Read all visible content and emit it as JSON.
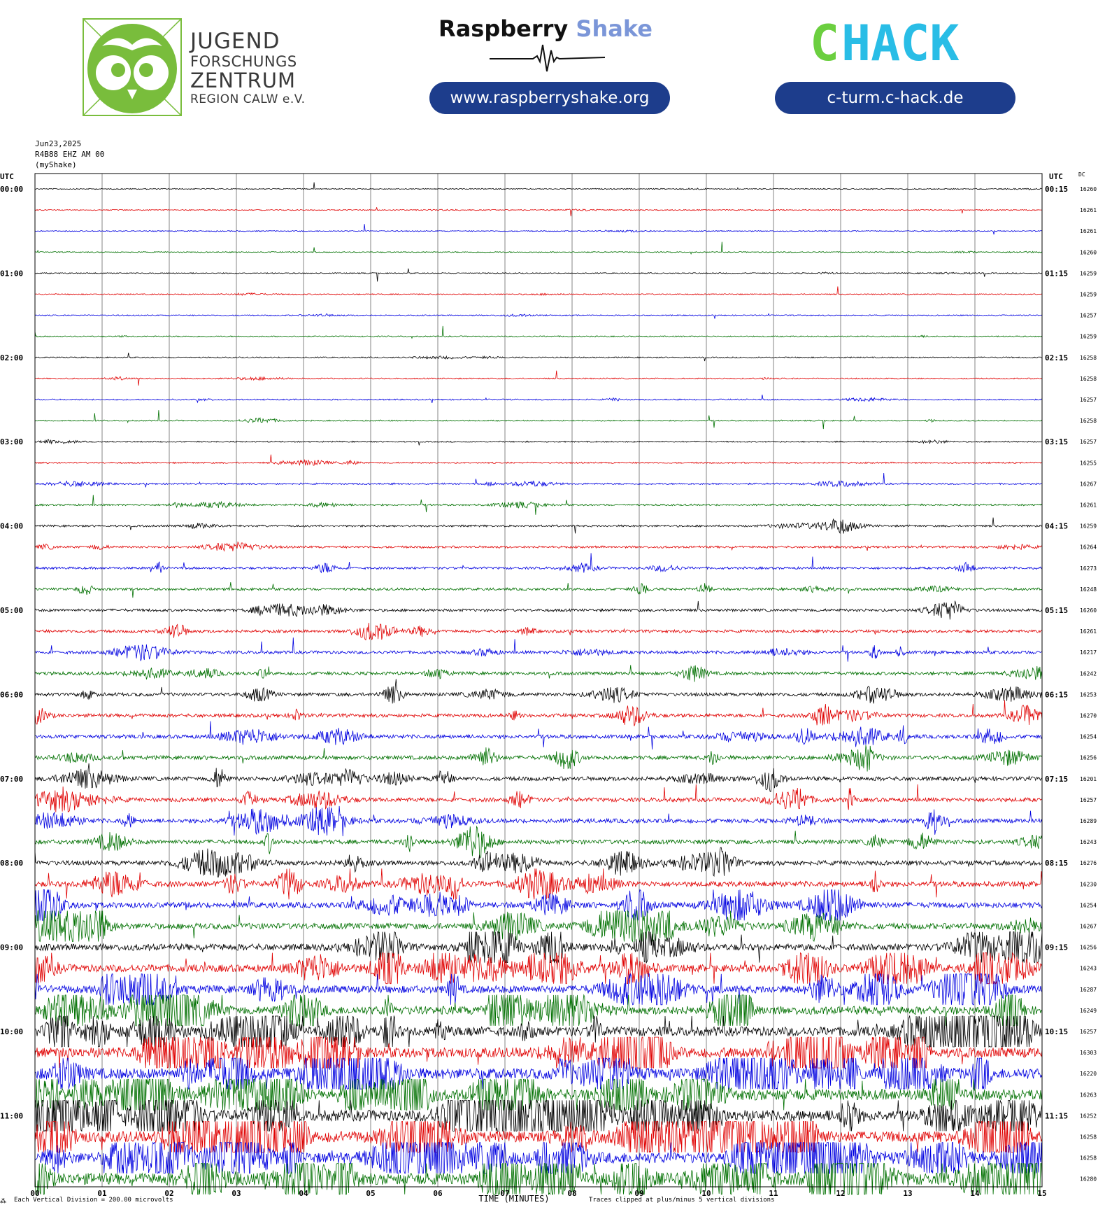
{
  "header": {
    "jfz_line1": "JUGEND",
    "jfz_line2": "FORSCHUNGS",
    "jfz_line3": "ZENTRUM",
    "jfz_line4": "REGION CALW e.V.",
    "rs_word1": "Raspberry",
    "rs_word2": "Shake",
    "rs_url": "www.raspberryshake.org",
    "chack_c": "C",
    "chack_rest": "HACK",
    "chack_url": "c-turm.c-hack.de"
  },
  "chart_data": {
    "type": "line",
    "title_lines": [
      "Jun23,2025",
      "R4B88 EHZ AM 00",
      "(myShake)"
    ],
    "left_axis_title": "UTC",
    "right_axis_title": "UTC",
    "dc_title": "DC",
    "xlabel": "TIME (MINUTES)",
    "xlim": [
      0,
      15
    ],
    "x_ticks": [
      "00",
      "01",
      "02",
      "03",
      "04",
      "05",
      "06",
      "07",
      "08",
      "09",
      "10",
      "11",
      "12",
      "13",
      "14",
      "15"
    ],
    "footer_left": "Each Vertical Division = 200.00 microvolts",
    "footer_right": "Traces clipped at plus/minus 5 vertical divisions",
    "footer_mark": "⁂",
    "trace_colors": [
      "#000000",
      "#e00000",
      "#0000e0",
      "#007000"
    ],
    "left_hour_labels": [
      "00:00",
      "01:00",
      "02:00",
      "03:00",
      "04:00",
      "05:00",
      "06:00",
      "07:00",
      "08:00",
      "09:00",
      "10:00",
      "11:00"
    ],
    "right_hour_labels": [
      "00:15",
      "01:15",
      "02:15",
      "03:15",
      "04:15",
      "05:15",
      "06:15",
      "07:15",
      "08:15",
      "09:15",
      "10:15",
      "11:15"
    ],
    "dc_values": [
      "16260",
      "16261",
      "16261",
      "16260",
      "16259",
      "16259",
      "16257",
      "16259",
      "16258",
      "16258",
      "16257",
      "16258",
      "16257",
      "16255",
      "16267",
      "16261",
      "16259",
      "16264",
      "16273",
      "16248",
      "16260",
      "16261",
      "16217",
      "16242",
      "16253",
      "16270",
      "16254",
      "16256",
      "16201",
      "16257",
      "16289",
      "16243",
      "16276",
      "16230",
      "16254",
      "16267",
      "16256",
      "16243",
      "16287",
      "16249",
      "16257",
      "16303",
      "16220",
      "16263",
      "16252",
      "16258",
      "16258",
      "16280"
    ],
    "activity_levels": [
      0.05,
      0.06,
      0.05,
      0.05,
      0.06,
      0.07,
      0.07,
      0.08,
      0.1,
      0.1,
      0.12,
      0.12,
      0.14,
      0.2,
      0.25,
      0.28,
      0.35,
      0.4,
      0.45,
      0.5,
      0.55,
      0.6,
      0.65,
      0.7,
      0.75,
      0.8,
      0.85,
      0.9,
      0.95,
      0.95,
      1.0,
      1.0,
      1.1,
      1.3,
      1.4,
      1.5,
      1.7,
      1.9,
      2.0,
      2.2,
      2.5,
      2.7,
      2.9,
      3.0,
      3.0,
      3.0,
      3.0,
      3.2
    ]
  }
}
